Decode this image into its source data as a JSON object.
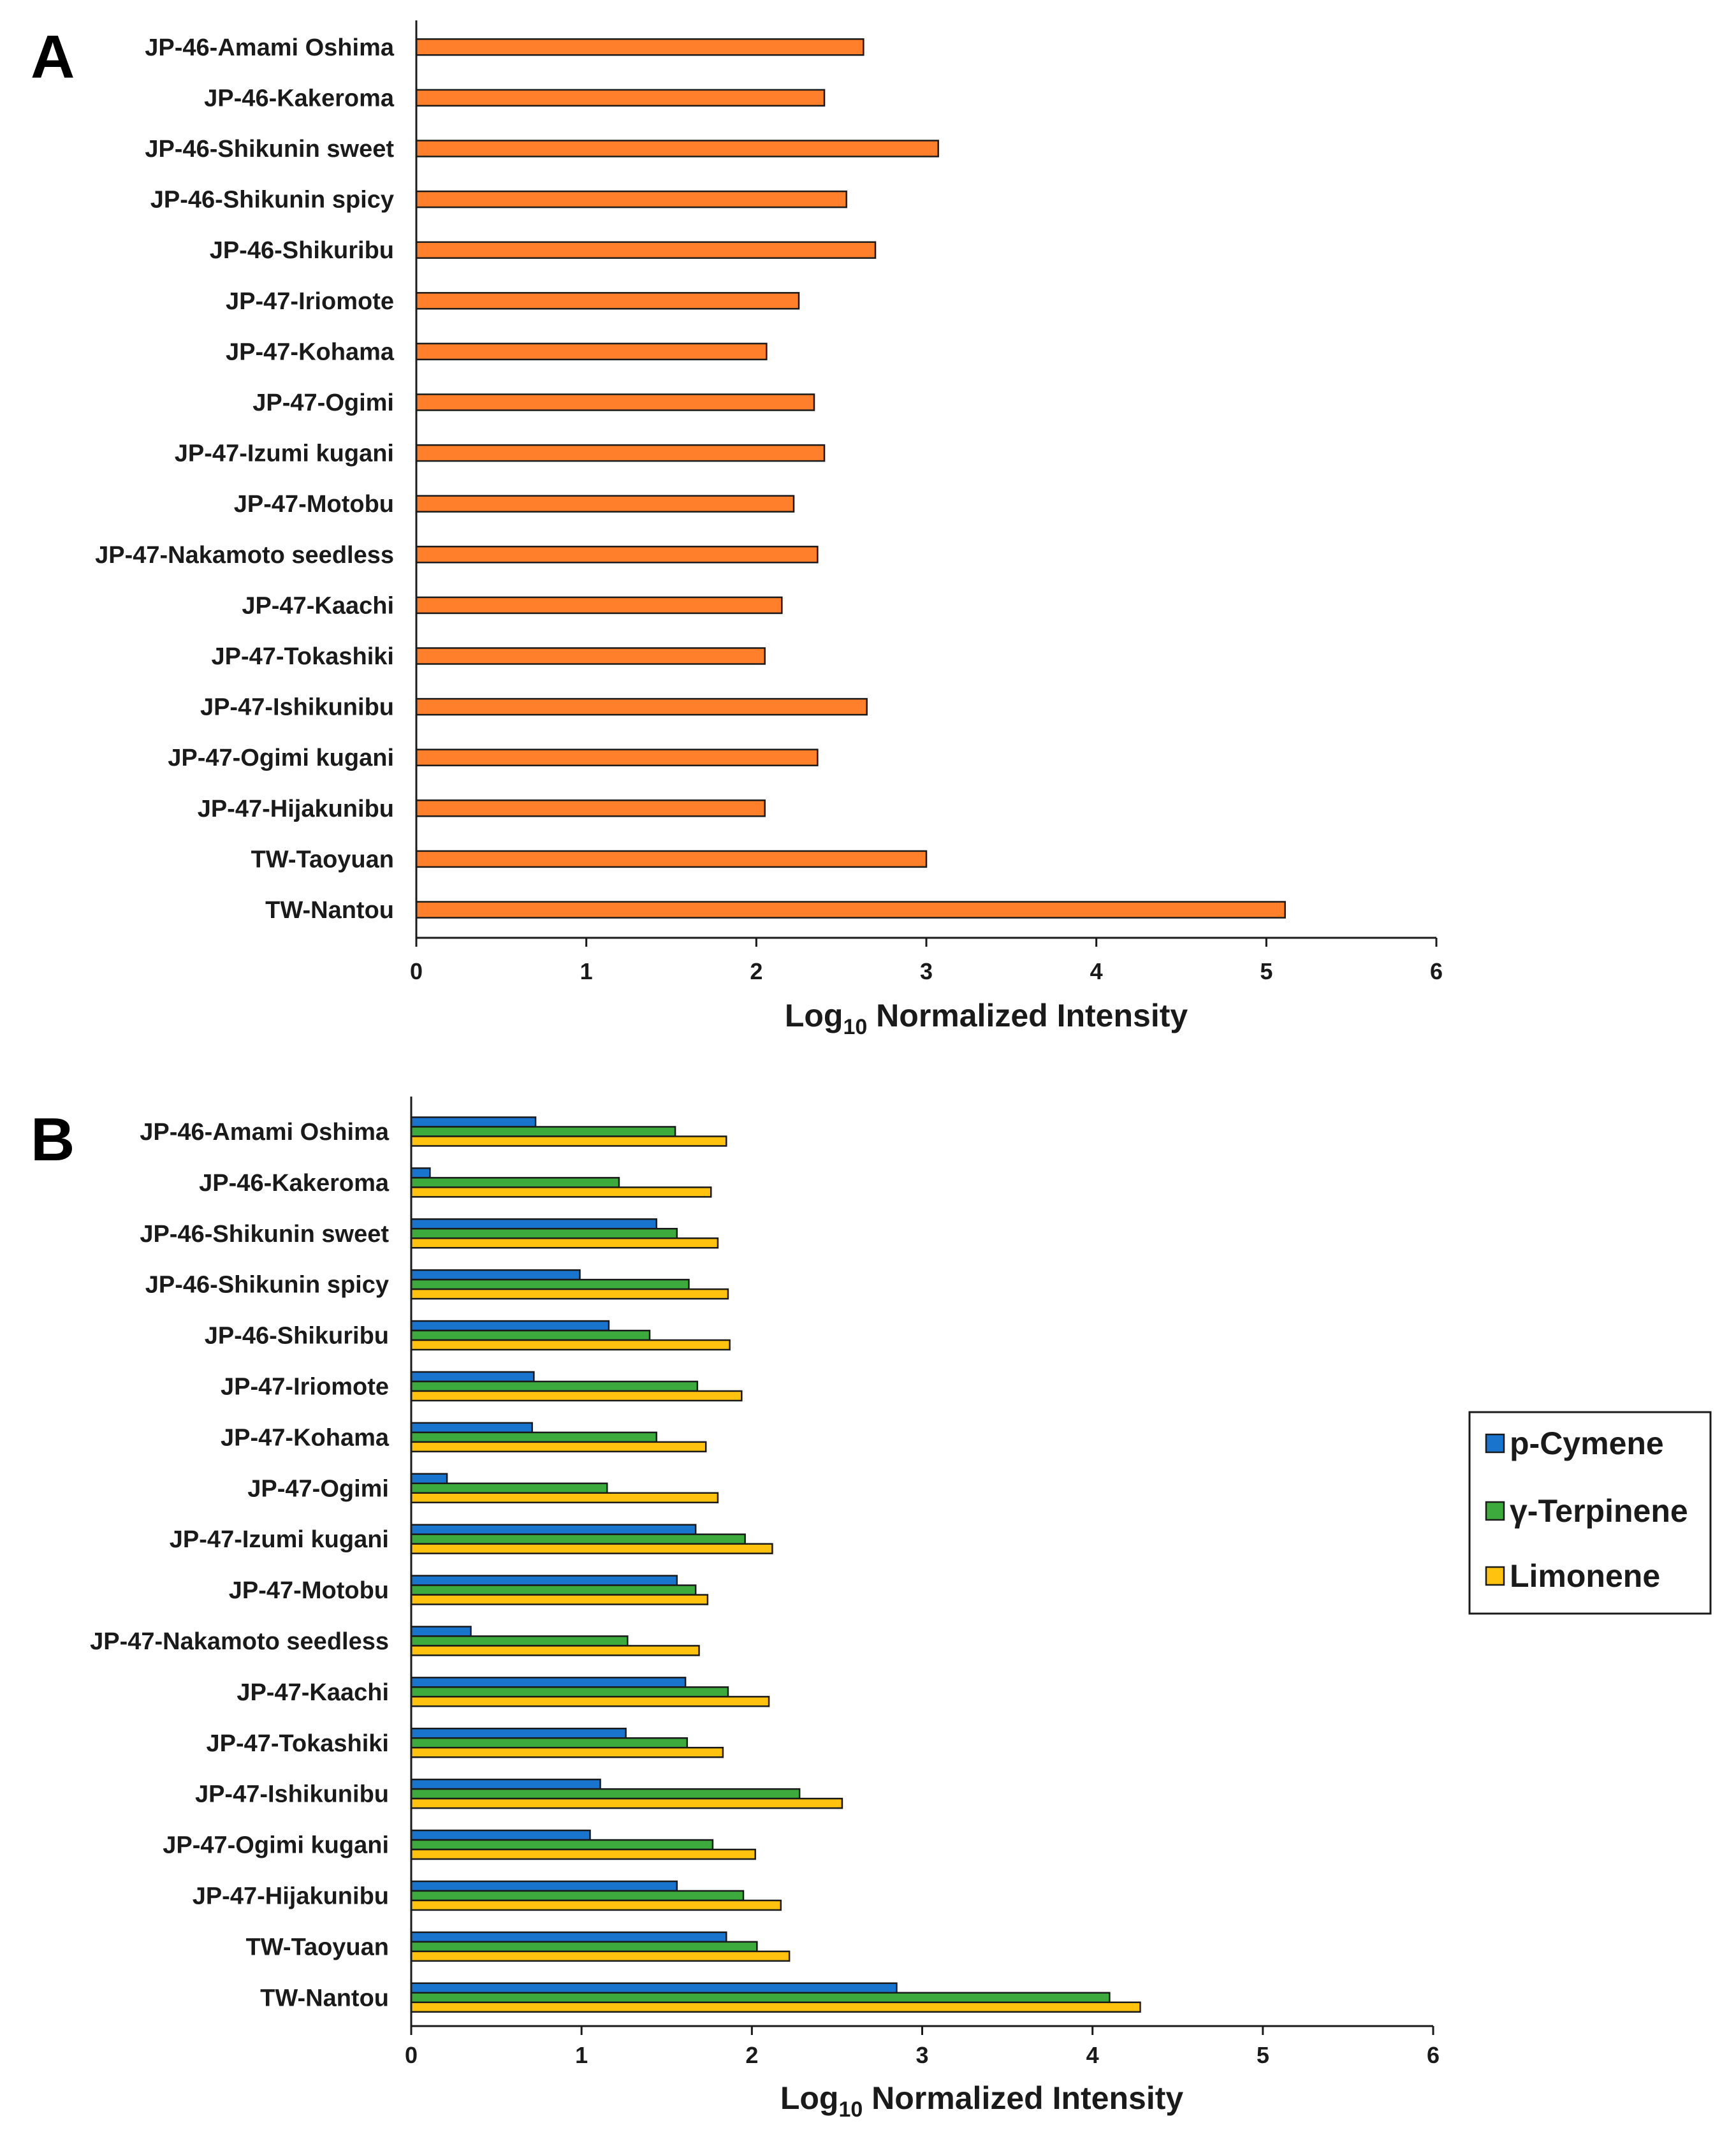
{
  "chart_data": [
    {
      "panel": "A",
      "type": "bar",
      "orientation": "horizontal",
      "xlabel_prefix": "Log",
      "xlabel_sub": "10",
      "xlabel_suffix": " Normalized Intensity",
      "xlim": [
        0,
        6
      ],
      "xticks": [
        "0",
        "1",
        "2",
        "3",
        "4",
        "5",
        "6"
      ],
      "grid": false,
      "categories": [
        "JP-46-Amami Oshima",
        "JP-46-Kakeroma",
        "JP-46-Shikunin sweet",
        "JP-46-Shikunin spicy",
        "JP-46-Shikuribu",
        "JP-47-Iriomote",
        "JP-47-Kohama",
        "JP-47-Ogimi",
        "JP-47-Izumi kugani",
        "JP-47-Motobu",
        "JP-47-Nakamoto seedless",
        "JP-47-Kaachi",
        "JP-47-Tokashiki",
        "JP-47-Ishikunibu",
        "JP-47-Ogimi kugani",
        "JP-47-Hijakunibu",
        "TW-Taoyuan",
        "TW-Nantou"
      ],
      "series": [
        {
          "name": "",
          "color": "#FF7F2A",
          "values": [
            2.63,
            2.4,
            3.07,
            2.53,
            2.7,
            2.25,
            2.06,
            2.34,
            2.4,
            2.22,
            2.36,
            2.15,
            2.05,
            2.65,
            2.36,
            2.05,
            3.0,
            5.11
          ]
        }
      ]
    },
    {
      "panel": "B",
      "type": "bar",
      "orientation": "horizontal",
      "xlabel_prefix": "Log",
      "xlabel_sub": "10",
      "xlabel_suffix": " Normalized Intensity",
      "xlim": [
        0,
        6
      ],
      "xticks": [
        "0",
        "1",
        "2",
        "3",
        "4",
        "5",
        "6"
      ],
      "grid": false,
      "legend_position": "right",
      "categories": [
        "JP-46-Amami Oshima",
        "JP-46-Kakeroma",
        "JP-46-Shikunin sweet",
        "JP-46-Shikunin spicy",
        "JP-46-Shikuribu",
        "JP-47-Iriomote",
        "JP-47-Kohama",
        "JP-47-Ogimi",
        "JP-47-Izumi kugani",
        "JP-47-Motobu",
        "JP-47-Nakamoto seedless",
        "JP-47-Kaachi",
        "JP-47-Tokashiki",
        "JP-47-Ishikunibu",
        "JP-47-Ogimi kugani",
        "JP-47-Hijakunibu",
        "TW-Taoyuan",
        "TW-Nantou"
      ],
      "series": [
        {
          "name": "p-Cymene",
          "color": "#1874CD",
          "values": [
            0.73,
            0.11,
            1.44,
            0.99,
            1.16,
            0.72,
            0.71,
            0.21,
            1.67,
            1.56,
            0.35,
            1.61,
            1.26,
            1.11,
            1.05,
            1.56,
            1.85,
            2.85
          ]
        },
        {
          "name": "γ-Terpinene",
          "color": "#3CAA3C",
          "values": [
            1.55,
            1.22,
            1.56,
            1.63,
            1.4,
            1.68,
            1.44,
            1.15,
            1.96,
            1.67,
            1.27,
            1.86,
            1.62,
            2.28,
            1.77,
            1.95,
            2.03,
            4.1
          ]
        },
        {
          "name": "Limonene",
          "color": "#FFC20E",
          "values": [
            1.85,
            1.76,
            1.8,
            1.86,
            1.87,
            1.94,
            1.73,
            1.8,
            2.12,
            1.74,
            1.69,
            2.1,
            1.83,
            2.53,
            2.02,
            2.17,
            2.22,
            4.28
          ]
        }
      ]
    }
  ]
}
